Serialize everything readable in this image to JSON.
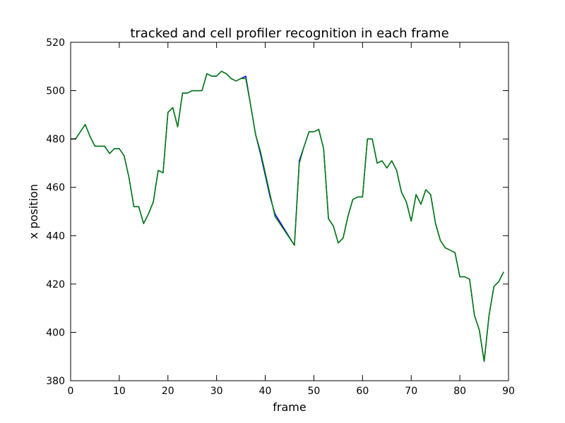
{
  "chart_data": {
    "type": "line",
    "title": "tracked and cell profiler recognition in each frame",
    "xlabel": "frame",
    "ylabel": "x position",
    "xlim": [
      0,
      90
    ],
    "ylim": [
      380,
      520
    ],
    "xticks": [
      0,
      10,
      20,
      30,
      40,
      50,
      60,
      70,
      80,
      90
    ],
    "yticks": [
      380,
      400,
      420,
      440,
      460,
      480,
      500,
      520
    ],
    "grid": false,
    "series": [
      {
        "color": "#0000ff",
        "x": [
          0,
          1,
          2,
          3,
          4,
          5,
          6,
          7,
          8,
          9,
          10,
          11,
          12,
          13,
          14,
          15,
          16,
          17,
          18,
          19,
          20,
          21,
          22,
          23,
          24,
          25,
          26,
          27,
          28,
          29,
          30,
          31,
          32,
          33,
          34,
          35,
          36,
          37,
          38,
          39,
          40,
          41,
          42,
          46,
          47,
          48,
          49,
          50,
          51,
          52,
          53,
          54,
          55,
          56,
          57,
          58,
          59,
          60,
          61,
          62,
          63,
          64,
          65,
          66,
          67,
          68,
          69,
          70,
          71,
          72,
          73,
          74,
          75,
          76,
          77,
          78,
          79,
          80,
          81,
          82,
          83,
          84,
          85,
          86,
          87,
          88,
          89
        ],
        "y": [
          480,
          480,
          483,
          486,
          481,
          477,
          477,
          477,
          474,
          476,
          476,
          473,
          464,
          452,
          452,
          445,
          449,
          454,
          467,
          466,
          491,
          493,
          485,
          499,
          499,
          500,
          500,
          500,
          507,
          506,
          506,
          508,
          507,
          505,
          504,
          505,
          506,
          494,
          482,
          474,
          465,
          456,
          449,
          436,
          471,
          477,
          483,
          483,
          484,
          476,
          447,
          444,
          437,
          439,
          448,
          455,
          456,
          456,
          480,
          480,
          470,
          471,
          468,
          471,
          467,
          458,
          454,
          446,
          457,
          453,
          459,
          457,
          445,
          438,
          435,
          434,
          433,
          423,
          423,
          422,
          407,
          401,
          388,
          407,
          419,
          421,
          425
        ]
      },
      {
        "color": "#007f00",
        "x": [
          0,
          1,
          2,
          3,
          4,
          5,
          6,
          7,
          8,
          9,
          10,
          11,
          12,
          13,
          14,
          15,
          16,
          17,
          18,
          19,
          20,
          21,
          22,
          23,
          24,
          25,
          26,
          27,
          28,
          29,
          30,
          31,
          32,
          33,
          34,
          35,
          36,
          37,
          38,
          39,
          40,
          41,
          42,
          46,
          47,
          48,
          49,
          50,
          51,
          52,
          53,
          54,
          55,
          56,
          57,
          58,
          59,
          60,
          61,
          62,
          63,
          64,
          65,
          66,
          67,
          68,
          69,
          70,
          71,
          72,
          73,
          74,
          75,
          76,
          77,
          78,
          79,
          80,
          81,
          82,
          83,
          84,
          85,
          86,
          87,
          88,
          89
        ],
        "y": [
          480,
          480,
          483,
          486,
          481,
          477,
          477,
          477,
          474,
          476,
          476,
          473,
          464,
          452,
          452,
          445,
          449,
          454,
          467,
          466,
          491,
          493,
          485,
          499,
          499,
          500,
          500,
          500,
          507,
          506,
          506,
          508,
          507,
          505,
          504,
          505,
          505,
          494,
          482,
          475,
          466,
          457,
          448,
          436,
          470,
          477,
          483,
          483,
          484,
          476,
          447,
          444,
          437,
          439,
          448,
          455,
          456,
          456,
          480,
          480,
          470,
          471,
          468,
          471,
          467,
          458,
          454,
          446,
          457,
          453,
          459,
          457,
          445,
          438,
          435,
          434,
          433,
          423,
          423,
          422,
          407,
          401,
          388,
          407,
          419,
          421,
          425
        ]
      }
    ]
  }
}
